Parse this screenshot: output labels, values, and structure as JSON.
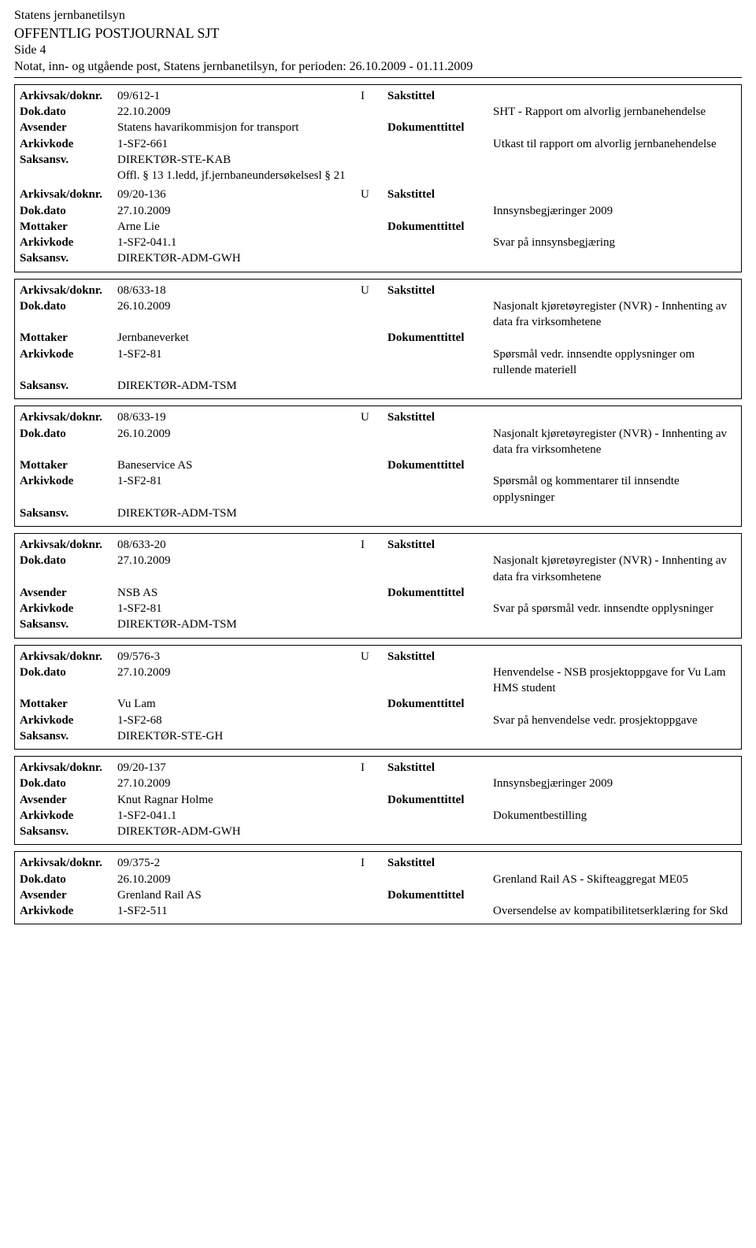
{
  "header": {
    "line1": "Statens jernbanetilsyn",
    "line2": "OFFENTLIG POSTJOURNAL SJT",
    "line3": "Side 4",
    "line4": "Notat, inn- og utgående post, Statens jernbanetilsyn, for perioden: 26.10.2009 - 01.11.2009"
  },
  "labels": {
    "arkivsak": "Arkivsak/doknr.",
    "dokdato": "Dok.dato",
    "avsender": "Avsender",
    "mottaker": "Mottaker",
    "arkivkode": "Arkivkode",
    "saksansv": "Saksansv.",
    "sakstittel": "Sakstittel",
    "dokumenttittel": "Dokumenttittel"
  },
  "entries": [
    {
      "arkivsak": "09/612-1",
      "io": "I",
      "dokdato": "22.10.2009",
      "party_label": "Avsender",
      "party": "Statens havarikommisjon for transport",
      "arkivkode": "1-SF2-661",
      "saksansv": "DIREKTØR-STE-KAB",
      "extra": "Offl. § 13 1.ledd, jf.jernbaneundersøkelsesl § 21",
      "sakstittel": "SHT - Rapport om alvorlig jernbanehendelse",
      "doktittel": "Utkast til rapport om alvorlig jernbanehendelse",
      "has_sub": true,
      "sub": {
        "arkivsak": "09/20-136",
        "io": "U",
        "dokdato": "27.10.2009",
        "party_label": "Mottaker",
        "party": "Arne Lie",
        "arkivkode": "1-SF2-041.1",
        "saksansv": "DIREKTØR-ADM-GWH",
        "sakstittel": "Innsynsbegjæringer 2009",
        "doktittel": "Svar på innsynsbegjæring"
      }
    },
    {
      "arkivsak": "08/633-18",
      "io": "U",
      "dokdato": "26.10.2009",
      "party_label": "Mottaker",
      "party": "Jernbaneverket",
      "arkivkode": "1-SF2-81",
      "saksansv": "DIREKTØR-ADM-TSM",
      "sakstittel": "Nasjonalt kjøretøyregister (NVR) - Innhenting av data fra virksomhetene",
      "doktittel": "Spørsmål vedr. innsendte opplysninger om rullende materiell"
    },
    {
      "arkivsak": "08/633-19",
      "io": "U",
      "dokdato": "26.10.2009",
      "party_label": "Mottaker",
      "party": "Baneservice AS",
      "arkivkode": "1-SF2-81",
      "saksansv": "DIREKTØR-ADM-TSM",
      "sakstittel": "Nasjonalt kjøretøyregister (NVR) - Innhenting av data fra virksomhetene",
      "doktittel": "Spørsmål og kommentarer til innsendte opplysninger"
    },
    {
      "arkivsak": "08/633-20",
      "io": "I",
      "dokdato": "27.10.2009",
      "party_label": "Avsender",
      "party": "NSB AS",
      "arkivkode": "1-SF2-81",
      "saksansv": "DIREKTØR-ADM-TSM",
      "sakstittel": "Nasjonalt kjøretøyregister (NVR) - Innhenting av data fra virksomhetene",
      "doktittel": "Svar på spørsmål vedr. innsendte opplysninger"
    },
    {
      "arkivsak": "09/576-3",
      "io": "U",
      "dokdato": "27.10.2009",
      "party_label": "Mottaker",
      "party": "Vu Lam",
      "arkivkode": "1-SF2-68",
      "saksansv": "DIREKTØR-STE-GH",
      "sakstittel": "Henvendelse - NSB prosjektoppgave for Vu Lam HMS student",
      "doktittel": "Svar på henvendelse vedr. prosjektoppgave"
    },
    {
      "arkivsak": "09/20-137",
      "io": "I",
      "dokdato": "27.10.2009",
      "party_label": "Avsender",
      "party": "Knut Ragnar Holme",
      "arkivkode": "1-SF2-041.1",
      "saksansv": "DIREKTØR-ADM-GWH",
      "sakstittel": "Innsynsbegjæringer 2009",
      "doktittel": "Dokumentbestilling"
    },
    {
      "arkivsak": "09/375-2",
      "io": "I",
      "dokdato": "26.10.2009",
      "party_label": "Avsender",
      "party": "Grenland Rail AS",
      "arkivkode": "1-SF2-511",
      "saksansv": "",
      "sakstittel": "Grenland Rail AS - Skifteaggregat ME05",
      "doktittel": "Oversendelse av kompatibilitetserklæring for Skd",
      "truncated": true
    }
  ]
}
